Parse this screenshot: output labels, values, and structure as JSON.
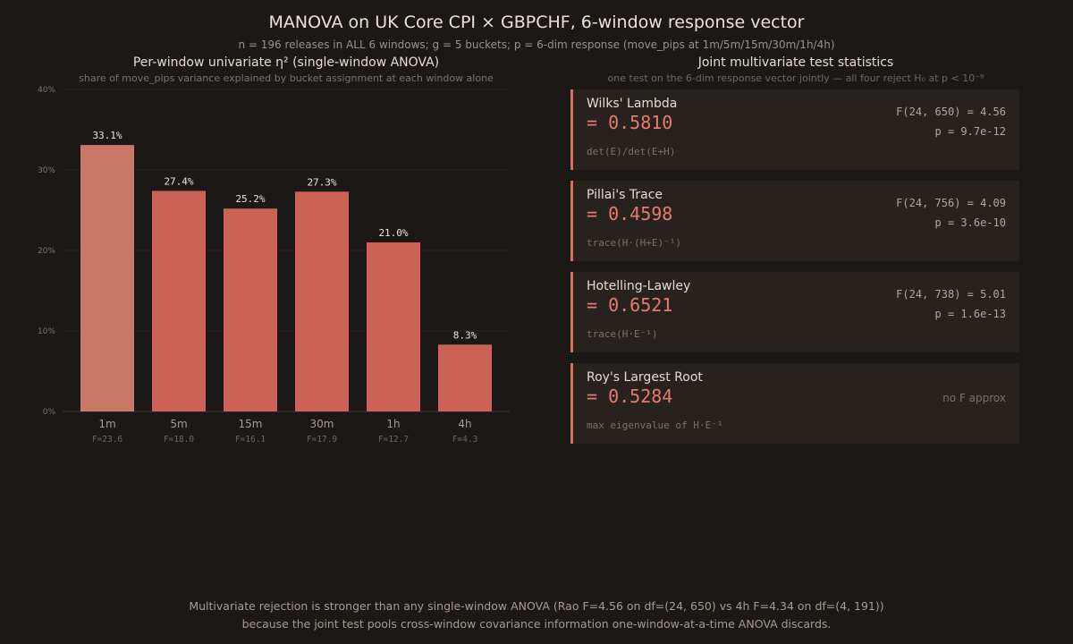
{
  "title": "MANOVA on UK Core CPI × GBPCHF, 6-window response vector",
  "subtitle": "n = 196 releases in ALL 6 windows; g = 5 buckets; p = 6-dim response (move_pips at 1m/5m/15m/30m/1h/4h)",
  "left_panel": {
    "title": "Per-window univariate η² (single-window ANOVA)",
    "subtitle": "share of move_pips variance explained by bucket assignment at each window alone"
  },
  "right_panel": {
    "title": "Joint multivariate test statistics",
    "subtitle": "one test on the 6-dim response vector jointly — all four reject H₀ at p < 10⁻⁹"
  },
  "chart_data": {
    "type": "bar",
    "categories": [
      "1m",
      "5m",
      "15m",
      "30m",
      "1h",
      "4h"
    ],
    "values": [
      33.1,
      27.4,
      25.2,
      27.3,
      21.0,
      8.3
    ],
    "value_labels": [
      "33.1%",
      "27.4%",
      "25.2%",
      "27.3%",
      "21.0%",
      "8.3%"
    ],
    "f_labels": [
      "F=23.6",
      "F=18.0",
      "F=16.1",
      "F=17.9",
      "F=12.7",
      "F=4.3"
    ],
    "yticks": [
      0,
      10,
      20,
      30,
      40
    ],
    "ytick_labels": [
      "0%",
      "10%",
      "20%",
      "30%",
      "40%"
    ],
    "ylim": [
      0,
      40
    ],
    "grid": true,
    "colors": {
      "highlight": "#c97767",
      "bar": "#cc6155",
      "grid": "#2b2622",
      "axis": "#3d3631"
    }
  },
  "tests": [
    {
      "name": "Wilks' Lambda",
      "value": "= 0.5810",
      "formula": "det(E)/det(E+H)",
      "f": "F(24, 650) = 4.56",
      "p": "p = 9.7e-12"
    },
    {
      "name": "Pillai's Trace",
      "value": "= 0.4598",
      "formula": "trace(H·(H+E)⁻¹)",
      "f": "F(24, 756) = 4.09",
      "p": "p = 3.6e-10"
    },
    {
      "name": "Hotelling-Lawley",
      "value": "= 0.6521",
      "formula": "trace(H·E⁻¹)",
      "f": "F(24, 738) = 5.01",
      "p": "p = 1.6e-13"
    },
    {
      "name": "Roy's Largest Root",
      "value": "= 0.5284",
      "formula": "max eigenvalue of H·E⁻¹",
      "na": "no F approx"
    }
  ],
  "footer": {
    "line1": "Multivariate rejection is stronger than any single-window ANOVA (Rao F=4.56 on df=(24, 650) vs 4h F=4.34 on df=(4, 191))",
    "line2": "because the joint test pools cross-window covariance information one-window-at-a-time ANOVA discards."
  }
}
